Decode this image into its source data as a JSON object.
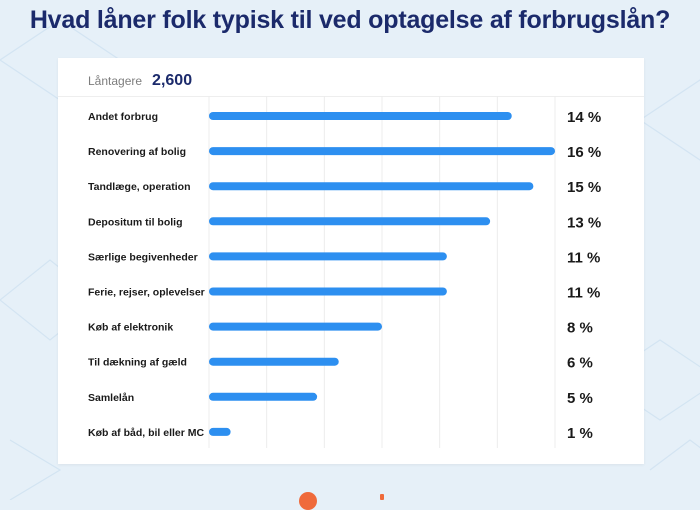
{
  "title": "Hvad låner folk typisk til ved optagelse af forbrugslån?",
  "borrowers_label": "Låntagere",
  "borrowers_value": "2,600",
  "chart_data": {
    "type": "bar",
    "orientation": "horizontal",
    "title": "Hvad låner folk typisk til ved optagelse af forbrugslån?",
    "categories": [
      "Andet forbrug",
      "Renovering af bolig",
      "Tandlæge, operation",
      "Depositum til bolig",
      "Særlige begivenheder",
      "Ferie, rejser, oplevelser",
      "Køb af elektronik",
      "Til dækning af gæld",
      "Samlelån",
      "Køb af båd, bil eller MC"
    ],
    "values": [
      14,
      16,
      15,
      13,
      11,
      11,
      8,
      6,
      5,
      1
    ],
    "value_labels": [
      "14 %",
      "16 %",
      "15 %",
      "13 %",
      "11 %",
      "11 %",
      "8 %",
      "6 %",
      "5 %",
      "1 %"
    ],
    "xlim": [
      0,
      16
    ],
    "grid": true,
    "bar_color": "#2d8ff0",
    "grid_color": "#ececec"
  },
  "colors": {
    "title": "#1b2a6b",
    "background": "#e6f0f8",
    "accent": "#ef6a3b"
  }
}
